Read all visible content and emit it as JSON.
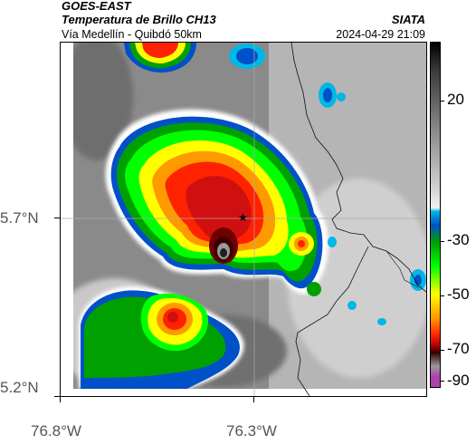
{
  "header": {
    "satellite": "GOES-EAST",
    "product": "Temperatura de Brillo CH13",
    "route": "Vía Medellín - Quibdó 50km",
    "org": "SIATA",
    "datetime": "2024-04-29 21:09"
  },
  "axes": {
    "lat_labels": [
      "5.7°N",
      "5.2°N"
    ],
    "lon_labels": [
      "76.8°W",
      "76.3°W"
    ]
  },
  "colorbar": {
    "labels": [
      "20",
      "-30",
      "-50",
      "-70",
      "-90"
    ],
    "colors": [
      "#000000",
      "#3a3a3a",
      "#888888",
      "#d0d0d0",
      "#f0f0f0",
      "#00b7e6",
      "#0050c8",
      "#00a000",
      "#00ff00",
      "#ffff00",
      "#ff9900",
      "#ff2200",
      "#b00000",
      "#300000",
      "#9a9a9a",
      "#b040b0"
    ]
  },
  "map": {
    "marker": "star-icon"
  }
}
